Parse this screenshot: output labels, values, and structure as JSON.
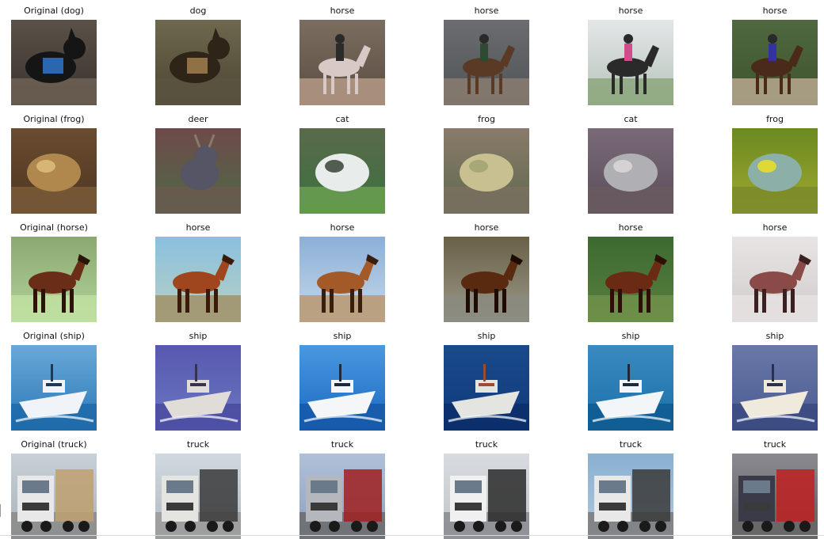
{
  "rows": [
    {
      "class": "dog",
      "labels": [
        "Original (dog)",
        "dog",
        "horse",
        "horse",
        "horse",
        "horse"
      ],
      "images": [
        {
          "bg": [
            "#5a5148",
            "#3a332c"
          ],
          "subject": "#151515",
          "accent": "#2f6fbf",
          "ground": "#6e6256",
          "shape": "dog",
          "icon": "dog-icon"
        },
        {
          "bg": [
            "#6e684e",
            "#4c4634"
          ],
          "subject": "#2e2418",
          "accent": "#9a7a4a",
          "ground": "#5a5340",
          "shape": "dog",
          "icon": "dog-icon"
        },
        {
          "bg": [
            "#7b6e5f",
            "#5a4c42"
          ],
          "subject": "#d8c9c6",
          "accent": "#2b2b2b",
          "ground": "#b59a86",
          "shape": "rider",
          "icon": "horse-icon"
        },
        {
          "bg": [
            "#6b6d70",
            "#4f5357"
          ],
          "subject": "#5a3a24",
          "accent": "#2f4a32",
          "ground": "#8a7d70",
          "shape": "rider",
          "icon": "horse-icon"
        },
        {
          "bg": [
            "#e4e6e8",
            "#b4c3b8"
          ],
          "subject": "#2a2a2a",
          "accent": "#d24c8c",
          "ground": "#8ca77d",
          "shape": "rider",
          "icon": "horse-icon"
        },
        {
          "bg": [
            "#50683e",
            "#3d5430"
          ],
          "subject": "#4a2a18",
          "accent": "#3232a0",
          "ground": "#b8a890",
          "shape": "rider",
          "icon": "horse-icon"
        }
      ]
    },
    {
      "class": "frog",
      "labels": [
        "Original (frog)",
        "deer",
        "cat",
        "frog",
        "cat",
        "frog"
      ],
      "images": [
        {
          "bg": [
            "#6a4c30",
            "#4e3620"
          ],
          "subject": "#b0884e",
          "accent": "#e0c080",
          "ground": "#7a5a38",
          "shape": "blob",
          "icon": "frog-icon"
        },
        {
          "bg": [
            "#6e4a4a",
            "#4e6a48"
          ],
          "subject": "#555566",
          "accent": "#8a7a6a",
          "ground": "#6a5a50",
          "shape": "deer",
          "icon": "deer-icon"
        },
        {
          "bg": [
            "#5a6a4a",
            "#3c7040"
          ],
          "subject": "#e8ecea",
          "accent": "#2a3a2a",
          "ground": "#6aa050",
          "shape": "blob",
          "icon": "cat-icon"
        },
        {
          "bg": [
            "#8a7a6a",
            "#5e6a4e"
          ],
          "subject": "#c8c090",
          "accent": "#a0a070",
          "ground": "#7a7060",
          "shape": "blob",
          "icon": "frog-icon"
        },
        {
          "bg": [
            "#7a6a78",
            "#5a4e58"
          ],
          "subject": "#b0b0b4",
          "accent": "#e0dada",
          "ground": "#6a5a60",
          "shape": "blob",
          "icon": "cat-icon"
        },
        {
          "bg": [
            "#6a8a20",
            "#a0a830"
          ],
          "subject": "#8cb0a8",
          "accent": "#f2e41a",
          "ground": "#7a8a2a",
          "shape": "blob",
          "icon": "frog-icon"
        }
      ]
    },
    {
      "class": "horse",
      "labels": [
        "Original (horse)",
        "horse",
        "horse",
        "horse",
        "horse",
        "horse"
      ],
      "images": [
        {
          "bg": [
            "#8aa870",
            "#b4d49a"
          ],
          "subject": "#6a2e18",
          "accent": "#2a1408",
          "ground": "#c0e0a0",
          "shape": "horse",
          "icon": "horse-icon"
        },
        {
          "bg": [
            "#8ac0e0",
            "#b8d0c0"
          ],
          "subject": "#a0461e",
          "accent": "#3a1a0a",
          "ground": "#a09068",
          "shape": "horse",
          "icon": "horse-icon"
        },
        {
          "bg": [
            "#8ab0d8",
            "#c8d8e8"
          ],
          "subject": "#a45a28",
          "accent": "#3a1e0c",
          "ground": "#b89870",
          "shape": "horse",
          "icon": "horse-icon"
        },
        {
          "bg": [
            "#6a6048",
            "#9a9a88"
          ],
          "subject": "#5a2a10",
          "accent": "#1e0c04",
          "ground": "#8a8a80",
          "shape": "horse",
          "icon": "horse-icon"
        },
        {
          "bg": [
            "#3c6a30",
            "#5a8040"
          ],
          "subject": "#6a2a14",
          "accent": "#2a1006",
          "ground": "#70904a",
          "shape": "horse",
          "icon": "horse-icon"
        },
        {
          "bg": [
            "#e8e4e4",
            "#d0cccc"
          ],
          "subject": "#8a4a48",
          "accent": "#3a2020",
          "ground": "#e6e2e0",
          "shape": "horse",
          "icon": "horse-icon"
        }
      ]
    },
    {
      "class": "ship",
      "labels": [
        "Original (ship)",
        "ship",
        "ship",
        "ship",
        "ship",
        "ship"
      ],
      "images": [
        {
          "bg": [
            "#6aa8d8",
            "#2878b8"
          ],
          "subject": "#f0f4f8",
          "accent": "#1a3a5a",
          "ground": "#1e6aa8",
          "shape": "boat",
          "icon": "ship-icon"
        },
        {
          "bg": [
            "#5858b0",
            "#6a78c0"
          ],
          "subject": "#e0dcd8",
          "accent": "#3a3050",
          "ground": "#4a4aa0",
          "shape": "boat",
          "icon": "ship-icon"
        },
        {
          "bg": [
            "#4a98e0",
            "#1a68c0"
          ],
          "subject": "#f4f6f8",
          "accent": "#1a2a40",
          "ground": "#1658a8",
          "shape": "boat",
          "icon": "ship-icon"
        },
        {
          "bg": [
            "#1a4a8a",
            "#0e3a7a"
          ],
          "subject": "#e4e4e0",
          "accent": "#a04a30",
          "ground": "#0a2e6a",
          "shape": "boat",
          "icon": "ship-icon"
        },
        {
          "bg": [
            "#3a8ac0",
            "#1a70a8"
          ],
          "subject": "#f2f6f8",
          "accent": "#1a2a3a",
          "ground": "#0e5a90",
          "shape": "boat",
          "icon": "ship-icon"
        },
        {
          "bg": [
            "#6a78a8",
            "#4a5a90"
          ],
          "subject": "#f0eadc",
          "accent": "#2a3050",
          "ground": "#3a4a80",
          "shape": "boat",
          "icon": "ship-icon"
        }
      ]
    },
    {
      "class": "truck",
      "labels": [
        "Original (truck)",
        "truck",
        "truck",
        "truck",
        "truck",
        "truck"
      ],
      "images": [
        {
          "bg": [
            "#c8d0d8",
            "#a8b0b8"
          ],
          "subject": "#e8e8e8",
          "accent": "#c0a070",
          "ground": "#8a8a88",
          "shape": "truck",
          "icon": "truck-icon"
        },
        {
          "bg": [
            "#d0d8e0",
            "#b0b8c0"
          ],
          "subject": "#e4e4e0",
          "accent": "#3a3a3a",
          "ground": "#9a9a98",
          "shape": "truck",
          "icon": "truck-icon"
        },
        {
          "bg": [
            "#b0c0d8",
            "#8aa0c0"
          ],
          "subject": "#b4b8bc",
          "accent": "#a02020",
          "ground": "#6a6a6a",
          "shape": "truck",
          "icon": "truck-icon"
        },
        {
          "bg": [
            "#d8dce0",
            "#c0c4c8"
          ],
          "subject": "#f0f0f0",
          "accent": "#2a2a2a",
          "ground": "#8a8a90",
          "shape": "truck",
          "icon": "truck-icon"
        },
        {
          "bg": [
            "#8ab0d0",
            "#b0c8e0"
          ],
          "subject": "#e8e8e8",
          "accent": "#3a3a3a",
          "ground": "#7a7a7a",
          "shape": "truck",
          "icon": "truck-icon"
        },
        {
          "bg": [
            "#8a8a90",
            "#5a5a60"
          ],
          "subject": "#3a3a48",
          "accent": "#c02020",
          "ground": "#6a6a6a",
          "shape": "truck",
          "icon": "truck-icon"
        }
      ]
    }
  ]
}
